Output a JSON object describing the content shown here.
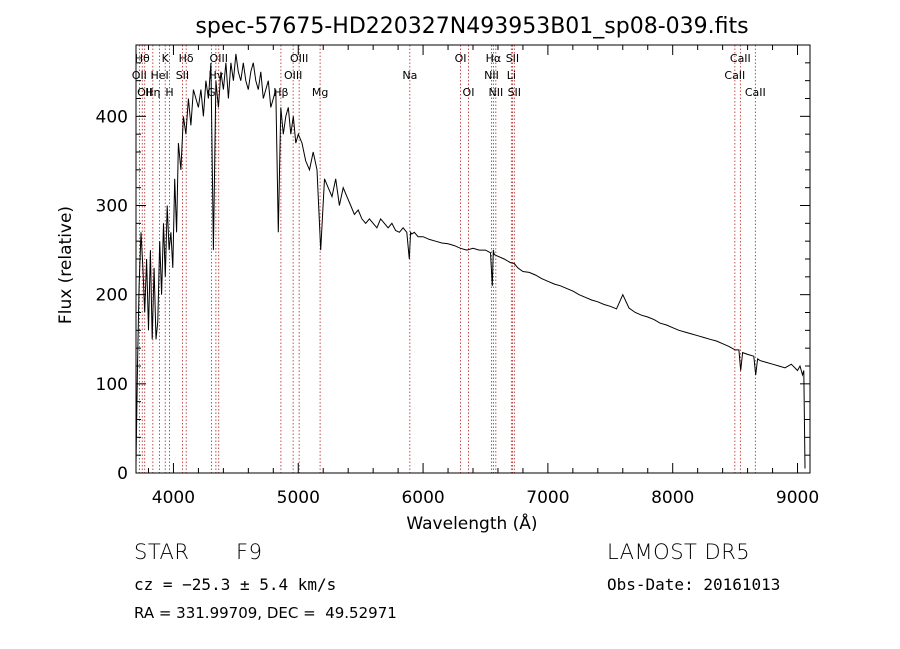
{
  "chart_data": {
    "type": "line",
    "title": "spec-57675-HD220327N493953B01_sp08-039.fits",
    "xlabel": "Wavelength (Å)",
    "ylabel": "Flux (relative)",
    "xlim": [
      3700,
      9100
    ],
    "ylim": [
      0,
      480
    ],
    "xticks": [
      4000,
      5000,
      6000,
      7000,
      8000,
      9000
    ],
    "yticks": [
      0,
      100,
      200,
      300,
      400
    ],
    "line_color": "#000000",
    "marker_color": "#b22222",
    "series": [
      {
        "x": [
          3700,
          3712,
          3725,
          3740,
          3755,
          3770,
          3785,
          3800,
          3815,
          3830,
          3845,
          3860,
          3875,
          3890,
          3905,
          3920,
          3935,
          3950,
          3965,
          3980,
          3995,
          4010,
          4025,
          4040,
          4060,
          4080,
          4100,
          4120,
          4140,
          4160,
          4180,
          4200,
          4220,
          4240,
          4260,
          4280,
          4300,
          4320,
          4340,
          4360,
          4380,
          4400,
          4420,
          4440,
          4460,
          4480,
          4500,
          4520,
          4540,
          4560,
          4580,
          4600,
          4620,
          4640,
          4660,
          4680,
          4700,
          4720,
          4740,
          4760,
          4780,
          4800,
          4820,
          4840,
          4860,
          4880,
          4900,
          4920,
          4940,
          4960,
          4980,
          5000,
          5030,
          5060,
          5090,
          5120,
          5150,
          5180,
          5210,
          5240,
          5270,
          5300,
          5330,
          5360,
          5390,
          5420,
          5450,
          5480,
          5510,
          5540,
          5570,
          5600,
          5630,
          5660,
          5690,
          5720,
          5750,
          5780,
          5810,
          5840,
          5870,
          5890,
          5900,
          5910,
          5930,
          5960,
          6000,
          6050,
          6100,
          6150,
          6200,
          6250,
          6300,
          6350,
          6400,
          6450,
          6500,
          6540,
          6555,
          6563,
          6570,
          6585,
          6600,
          6650,
          6700,
          6730,
          6760,
          6800,
          6850,
          6900,
          6950,
          7000,
          7050,
          7100,
          7150,
          7200,
          7250,
          7300,
          7350,
          7400,
          7450,
          7500,
          7550,
          7600,
          7650,
          7700,
          7750,
          7800,
          7850,
          7900,
          7950,
          8000,
          8050,
          8100,
          8150,
          8200,
          8250,
          8300,
          8350,
          8400,
          8450,
          8500,
          8530,
          8545,
          8560,
          8600,
          8650,
          8665,
          8680,
          8700,
          8750,
          8800,
          8850,
          8900,
          8950,
          9000,
          9020,
          9040,
          9050,
          9060
        ],
        "y": [
          10,
          120,
          210,
          270,
          230,
          180,
          240,
          160,
          250,
          150,
          230,
          150,
          170,
          260,
          200,
          280,
          220,
          300,
          250,
          270,
          230,
          330,
          270,
          370,
          340,
          400,
          380,
          420,
          390,
          430,
          420,
          410,
          430,
          400,
          440,
          420,
          460,
          250,
          440,
          410,
          450,
          430,
          460,
          420,
          460,
          440,
          470,
          450,
          440,
          460,
          440,
          430,
          450,
          460,
          440,
          430,
          450,
          420,
          430,
          440,
          410,
          420,
          430,
          270,
          410,
          380,
          400,
          410,
          380,
          400,
          370,
          380,
          370,
          350,
          340,
          360,
          340,
          250,
          330,
          320,
          310,
          330,
          300,
          320,
          310,
          300,
          290,
          295,
          285,
          280,
          285,
          280,
          275,
          285,
          280,
          275,
          280,
          272,
          270,
          275,
          270,
          240,
          270,
          268,
          270,
          265,
          265,
          262,
          260,
          258,
          257,
          255,
          252,
          250,
          252,
          250,
          250,
          247,
          210,
          250,
          245,
          244,
          243,
          240,
          236,
          235,
          230,
          226,
          225,
          222,
          218,
          215,
          212,
          210,
          207,
          204,
          200,
          197,
          194,
          192,
          189,
          187,
          184,
          200,
          185,
          180,
          177,
          175,
          172,
          168,
          166,
          163,
          160,
          158,
          156,
          154,
          152,
          150,
          148,
          145,
          142,
          138,
          138,
          115,
          135,
          133,
          131,
          110,
          128,
          126,
          124,
          122,
          120,
          118,
          122,
          115,
          120,
          110,
          115,
          5
        ]
      }
    ],
    "line_markers": [
      {
        "x": 3727,
        "label": "OII",
        "row": 2
      },
      {
        "x": 3750,
        "label": "Hθ",
        "row": 1
      },
      {
        "x": 3770,
        "label": "OII",
        "row": 3
      },
      {
        "x": 3835,
        "label": "Hη",
        "row": 3
      },
      {
        "x": 3889,
        "label": "HeI",
        "row": 2
      },
      {
        "x": 3934,
        "label": "K",
        "row": 1
      },
      {
        "x": 3969,
        "label": "H",
        "row": 3
      },
      {
        "x": 4072,
        "label": "SII",
        "row": 2
      },
      {
        "x": 4102,
        "label": "Hδ",
        "row": 1
      },
      {
        "x": 4304,
        "label": "G",
        "row": 3
      },
      {
        "x": 4340,
        "label": "Hγ",
        "row": 2
      },
      {
        "x": 4363,
        "label": "OIII",
        "row": 1
      },
      {
        "x": 4861,
        "label": "Hβ",
        "row": 3
      },
      {
        "x": 4959,
        "label": "OIII",
        "row": 2
      },
      {
        "x": 5007,
        "label": "OIII",
        "row": 1
      },
      {
        "x": 5175,
        "label": "Mg",
        "row": 3
      },
      {
        "x": 5894,
        "label": "Na",
        "row": 2
      },
      {
        "x": 6300,
        "label": "OI",
        "row": 1
      },
      {
        "x": 6364,
        "label": "OI",
        "row": 3
      },
      {
        "x": 6548,
        "label": "NII",
        "row": 2
      },
      {
        "x": 6563,
        "label": "Hα",
        "row": 1
      },
      {
        "x": 6583,
        "label": "NII",
        "row": 3
      },
      {
        "x": 6707,
        "label": "Li",
        "row": 2
      },
      {
        "x": 6716,
        "label": "SII",
        "row": 1
      },
      {
        "x": 6731,
        "label": "SII",
        "row": 3
      },
      {
        "x": 8498,
        "label": "CaII",
        "row": 2
      },
      {
        "x": 8542,
        "label": "CaII",
        "row": 1
      },
      {
        "x": 8662,
        "label": "CaII",
        "row": 3
      }
    ]
  },
  "info": {
    "object_class": "STAR",
    "subclass": "F9",
    "redshift_line": "cz = −25.3 ± 5.4 km/s",
    "coords_line": "RA = 331.99709, DEC =  49.52971",
    "survey": "LAMOST DR5",
    "obs_date": "Obs-Date: 20161013"
  }
}
